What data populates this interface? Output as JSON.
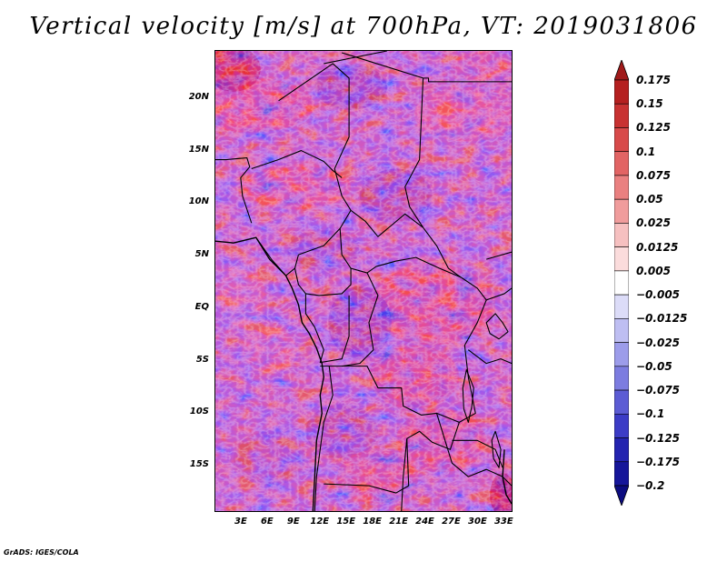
{
  "title": "Vertical velocity [m/s] at 700hPa, VT: 2019031806",
  "credit": "GrADS: IGES/COLA",
  "map": {
    "lon_range": [
      0,
      34
    ],
    "lat_range": [
      -19.5,
      24.5
    ],
    "lat_ticks": [
      {
        "value": 20,
        "label": "20N"
      },
      {
        "value": 15,
        "label": "15N"
      },
      {
        "value": 10,
        "label": "10N"
      },
      {
        "value": 5,
        "label": "5N"
      },
      {
        "value": 0,
        "label": "EQ"
      },
      {
        "value": -5,
        "label": "5S"
      },
      {
        "value": -10,
        "label": "10S"
      },
      {
        "value": -15,
        "label": "15S"
      }
    ],
    "lon_ticks": [
      {
        "value": 3,
        "label": "3E"
      },
      {
        "value": 6,
        "label": "6E"
      },
      {
        "value": 9,
        "label": "9E"
      },
      {
        "value": 12,
        "label": "12E"
      },
      {
        "value": 15,
        "label": "15E"
      },
      {
        "value": 18,
        "label": "18E"
      },
      {
        "value": 21,
        "label": "21E"
      },
      {
        "value": 24,
        "label": "24E"
      },
      {
        "value": 27,
        "label": "27E"
      },
      {
        "value": 30,
        "label": "30E"
      },
      {
        "value": 33,
        "label": "33E"
      }
    ]
  },
  "colorbar": {
    "levels": [
      "0.175",
      "0.15",
      "0.125",
      "0.1",
      "0.075",
      "0.05",
      "0.025",
      "0.0125",
      "0.005",
      "−0.005",
      "−0.0125",
      "−0.025",
      "−0.05",
      "−0.075",
      "−0.1",
      "−0.125",
      "−0.175",
      "−0.2"
    ],
    "colors": [
      "#a01a1a",
      "#b52020",
      "#c83232",
      "#d84a4a",
      "#e26464",
      "#ea8080",
      "#f09c9c",
      "#f6c0c0",
      "#fbdcdc",
      "#ffffff",
      "#dcdcf8",
      "#bebef2",
      "#9c9cea",
      "#7c7ce0",
      "#5c5cd4",
      "#3c3cc6",
      "#2424b0",
      "#16169a",
      "#0c0c80"
    ]
  }
}
